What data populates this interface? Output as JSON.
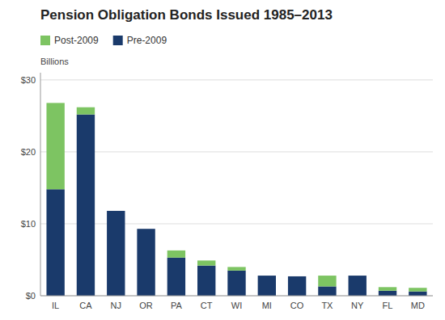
{
  "chart_data": {
    "type": "bar",
    "stacked": true,
    "title": "Pension Obligation Bonds Issued 1985–2013",
    "ylabel": "Billions",
    "categories": [
      "IL",
      "CA",
      "NJ",
      "OR",
      "PA",
      "CT",
      "WI",
      "MI",
      "CO",
      "TX",
      "NY",
      "FL",
      "MD"
    ],
    "series": [
      {
        "name": "Pre-2009",
        "color": "#1a3a6b",
        "values": [
          14.8,
          25.2,
          11.8,
          9.3,
          5.3,
          4.2,
          3.5,
          2.8,
          2.7,
          1.3,
          2.8,
          0.7,
          0.6
        ]
      },
      {
        "name": "Post-2009",
        "color": "#7dc462",
        "values": [
          12.0,
          1.0,
          0.0,
          0.0,
          1.0,
          0.7,
          0.5,
          0.0,
          0.0,
          1.5,
          0.0,
          0.5,
          0.5
        ]
      }
    ],
    "ylim": [
      0,
      31
    ],
    "yticks": [
      {
        "value": 0,
        "label": "$0"
      },
      {
        "value": 10,
        "label": "$10"
      },
      {
        "value": 20,
        "label": "$20"
      },
      {
        "value": 30,
        "label": "$30"
      }
    ],
    "grid": true,
    "legend": "upper left"
  }
}
